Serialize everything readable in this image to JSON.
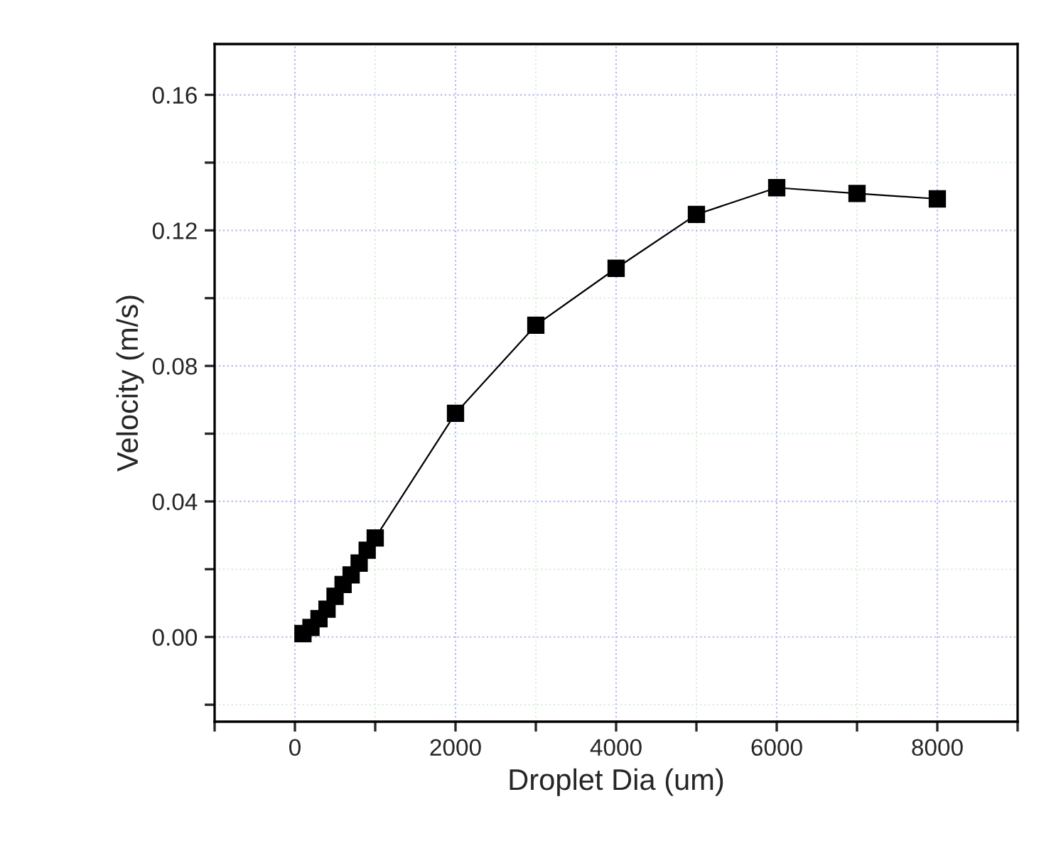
{
  "chart_data": {
    "type": "line",
    "xlabel": "Droplet Dia (um)",
    "ylabel": "Velocity (m/s)",
    "x": [
      100,
      200,
      300,
      400,
      500,
      600,
      700,
      800,
      900,
      1000,
      2000,
      3000,
      4000,
      5000,
      6000,
      7000,
      8000
    ],
    "series": [
      {
        "color": "#000000",
        "values": [
          0.001,
          0.0028,
          0.0054,
          0.0082,
          0.012,
          0.0155,
          0.0183,
          0.0218,
          0.0256,
          0.0292,
          0.066,
          0.092,
          0.1088,
          0.1247,
          0.1326,
          0.1309,
          0.1293
        ]
      }
    ],
    "marker": "square",
    "line_style": "solid",
    "grid": true,
    "legend": false,
    "xlim": [
      -1000,
      9000
    ],
    "xticks": [
      {
        "value": -1000,
        "label": null
      },
      0,
      {
        "value": 1000,
        "label": null
      },
      2000,
      {
        "value": 3000,
        "label": null
      },
      4000,
      {
        "value": 5000,
        "label": null
      },
      6000,
      {
        "value": 7000,
        "label": null
      },
      8000,
      {
        "value": 9000,
        "label": null
      }
    ],
    "ylim": [
      -0.025,
      0.175
    ],
    "yticks": [
      {
        "value": -0.02,
        "label": null
      },
      {
        "value": 0.0,
        "label": "0.00"
      },
      {
        "value": 0.02,
        "label": null
      },
      {
        "value": 0.04,
        "label": "0.04"
      },
      {
        "value": 0.06,
        "label": null
      },
      {
        "value": 0.08,
        "label": "0.08"
      },
      {
        "value": 0.1,
        "label": null
      },
      {
        "value": 0.12,
        "label": "0.12"
      },
      {
        "value": 0.14,
        "label": null
      },
      {
        "value": 0.16,
        "label": "0.16"
      }
    ]
  }
}
